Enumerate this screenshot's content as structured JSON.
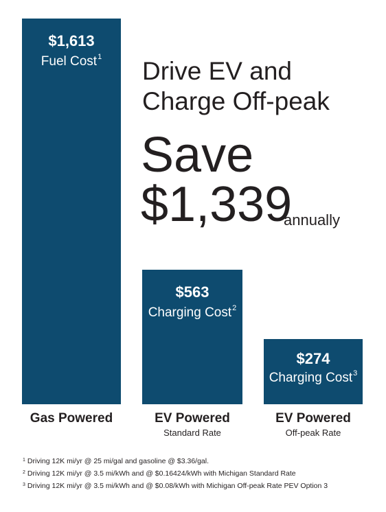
{
  "chart_data": {
    "type": "bar",
    "categories": [
      "Gas Powered",
      "EV Powered",
      "EV Powered"
    ],
    "category_sublabels": [
      "",
      "Standard Rate",
      "Off-peak Rate"
    ],
    "values": [
      1613,
      563,
      274
    ],
    "value_labels": [
      "$1,613",
      "$563",
      "$274"
    ],
    "bar_descriptions": [
      "Fuel Cost",
      "Charging Cost",
      "Charging Cost"
    ],
    "footnote_marks": [
      "1",
      "2",
      "3"
    ],
    "ylim": [
      0,
      1613
    ],
    "grid": false,
    "bar_color": "#0e4b6f"
  },
  "headline": {
    "line1": "Drive EV and",
    "line2": "Charge Off-peak",
    "save_word": "Save",
    "save_amount": "$1,339",
    "save_period": "annually"
  },
  "footnotes": [
    {
      "mark": "1",
      "text": "Driving 12K mi/yr @ 25 mi/gal and gasoline @ $3.36/gal."
    },
    {
      "mark": "2",
      "text": "Driving 12K mi/yr @ 3.5 mi/kWh and @ $0.16424/kWh with Michigan Standard Rate"
    },
    {
      "mark": "3",
      "text": "Driving 12K mi/yr @ 3.5 mi/kWh and @ $0.08/kWh with Michigan Off-peak Rate PEV Option 3"
    }
  ]
}
